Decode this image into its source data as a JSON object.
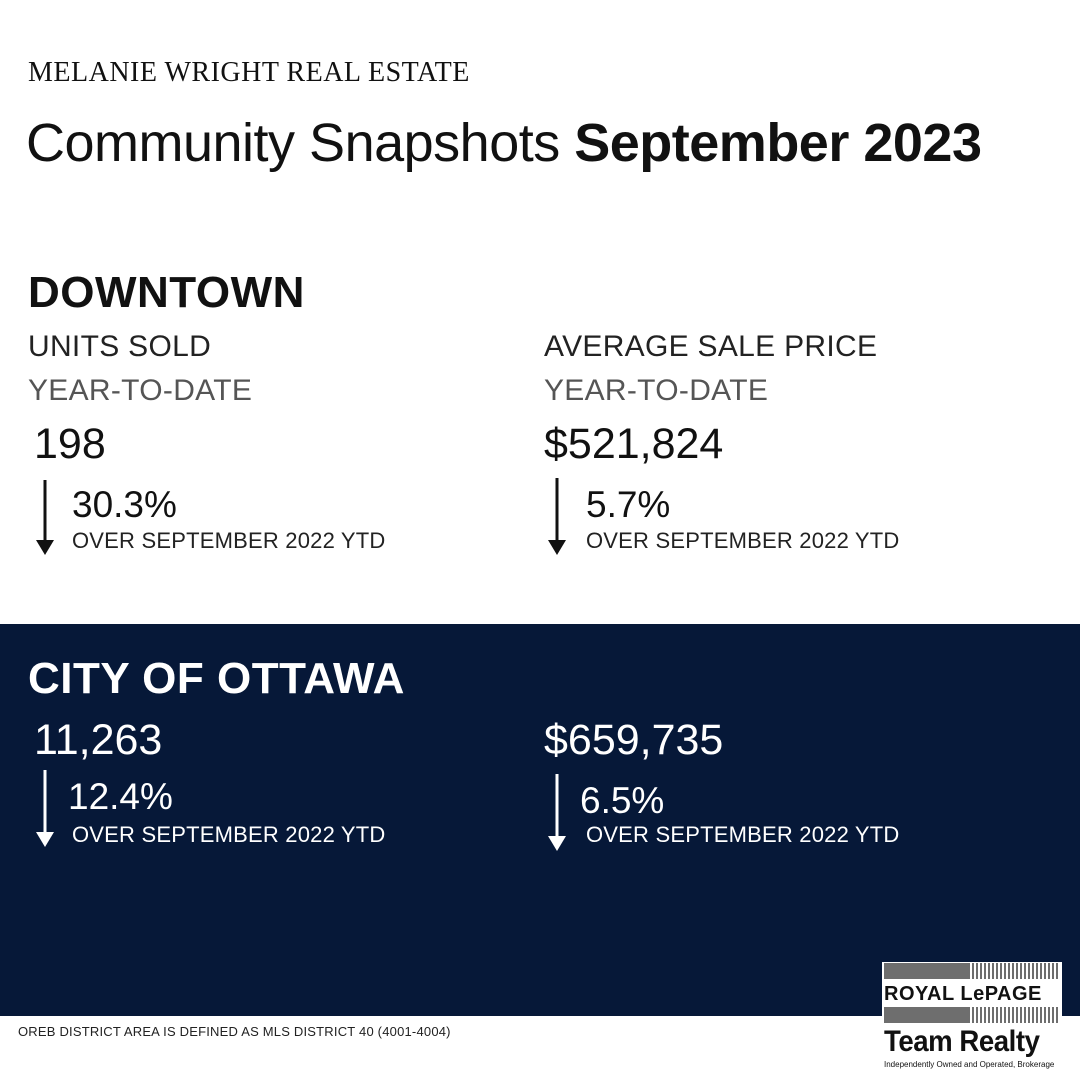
{
  "header": {
    "brand": "MELANIE WRIGHT REAL ESTATE",
    "title_regular": "Community Snapshots ",
    "title_bold": "September 2023"
  },
  "downtown": {
    "title": "DOWNTOWN",
    "units": {
      "label": "UNITS SOLD",
      "period": "YEAR-TO-DATE",
      "value": "198",
      "change": "30.3%",
      "direction": "down",
      "comparison": "OVER SEPTEMBER 2022 YTD"
    },
    "price": {
      "label": "AVERAGE SALE PRICE",
      "period": "YEAR-TO-DATE",
      "value": "$521,824",
      "change": "5.7%",
      "direction": "down",
      "comparison": "OVER SEPTEMBER 2022 YTD"
    }
  },
  "ottawa": {
    "title": "CITY OF OTTAWA",
    "units": {
      "value": "11,263",
      "change": "12.4%",
      "direction": "down",
      "comparison": "OVER SEPTEMBER 2022 YTD"
    },
    "price": {
      "value": "$659,735",
      "change": "6.5%",
      "direction": "down",
      "comparison": "OVER SEPTEMBER 2022 YTD"
    }
  },
  "footnote": "OREB DISTRICT AREA IS DEFINED AS MLS DISTRICT 40 (4001-4004)",
  "logo": {
    "line1": "ROYAL LePAGE",
    "line2": "Team Realty",
    "line3": "Independently Owned and Operated, Brokerage"
  },
  "colors": {
    "dark_panel": "#061838",
    "text": "#111111",
    "inverse_text": "#ffffff"
  }
}
